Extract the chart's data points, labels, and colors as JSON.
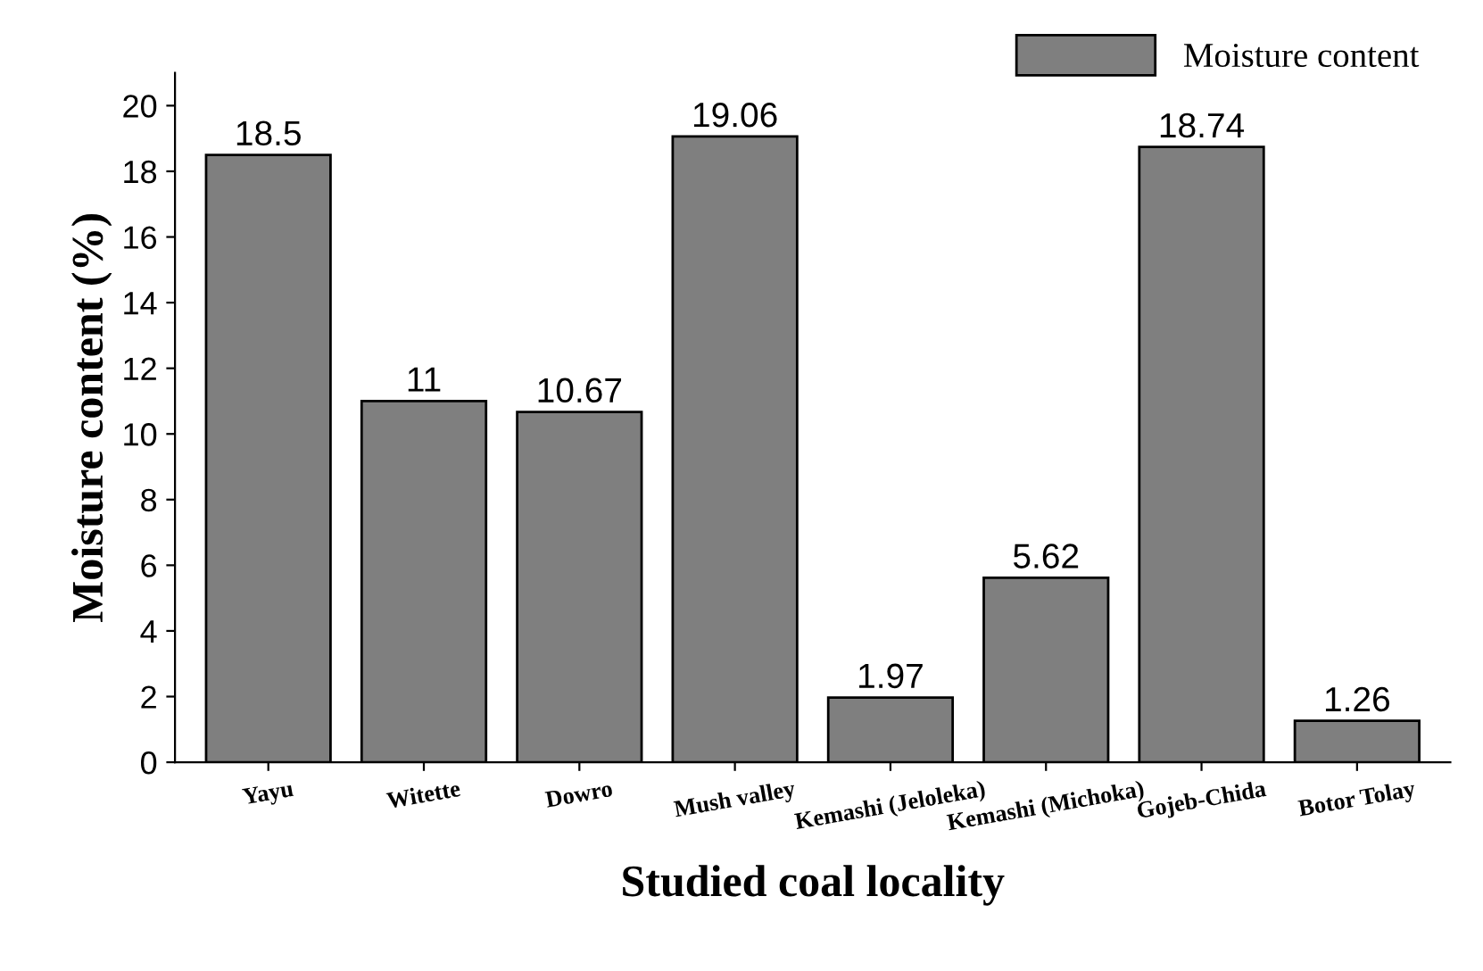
{
  "chart_data": {
    "type": "bar",
    "xlabel": "Studied coal locality",
    "ylabel": "Moisture content (%)",
    "categories": [
      "Yayu",
      "Witette",
      "Dowro",
      "Mush valley",
      "Kemashi (Jeloleka)",
      "Kemashi (Michoka)",
      "Gojeb-Chida",
      "Botor Tolay"
    ],
    "series": [
      {
        "name": "Moisture content",
        "color": "#7f7f7f",
        "values": [
          18.5,
          11,
          10.67,
          19.06,
          1.97,
          5.62,
          18.74,
          1.26
        ]
      }
    ],
    "ylim": [
      0,
      21
    ],
    "yticks": [
      0,
      2,
      4,
      6,
      8,
      10,
      12,
      14,
      16,
      18,
      20
    ],
    "data_labels": true,
    "legend": "top right",
    "grid": false
  }
}
